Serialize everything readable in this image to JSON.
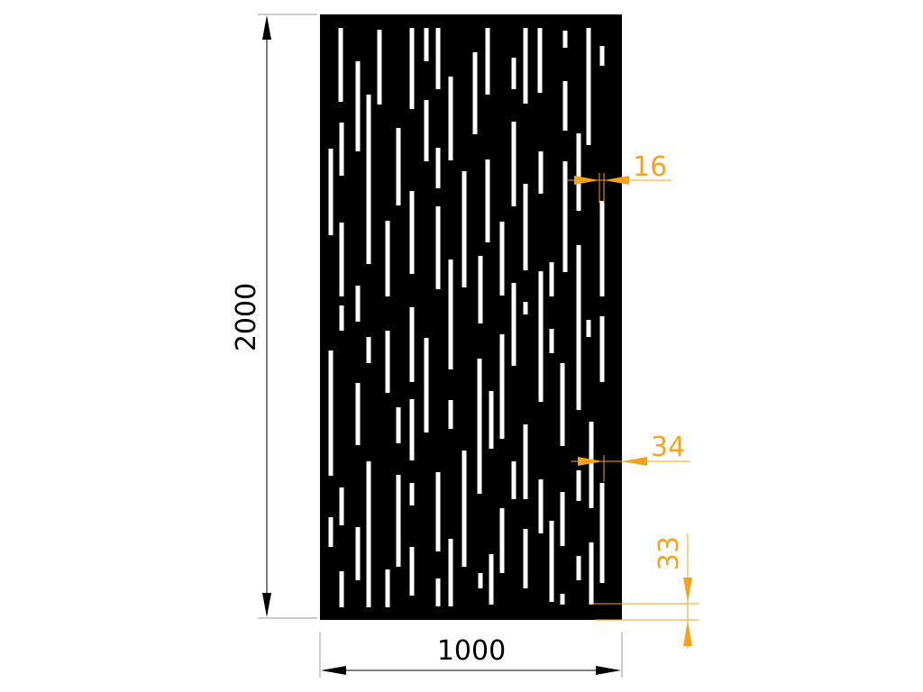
{
  "drawing": {
    "panel_color": "#000000",
    "slot_color": "#ffffff",
    "dimension_color": "#000000",
    "detail_dimension_color": "#f7a21b"
  },
  "dimensions": {
    "height": "2000",
    "width": "1000",
    "slot_width": "16",
    "edge_margin": "34",
    "bottom_margin": "33"
  }
}
